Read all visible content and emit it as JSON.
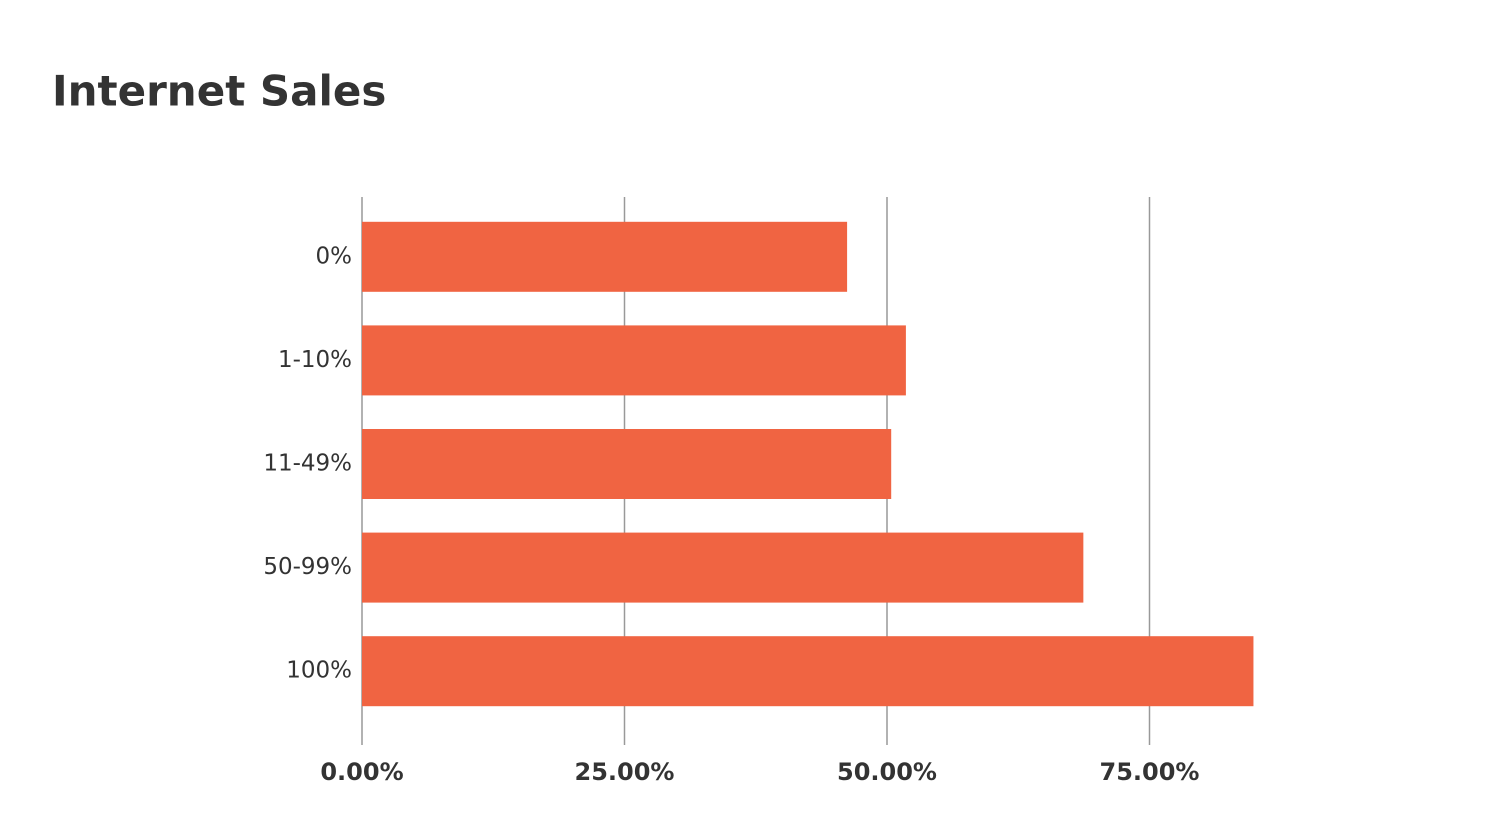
{
  "chart_data": {
    "type": "hbar",
    "title": "Internet Sales",
    "categories": [
      "0%",
      "1-10%",
      "11-49%",
      "50-99%",
      "100%"
    ],
    "values": [
      46.2,
      51.8,
      50.4,
      68.7,
      84.9
    ],
    "color": "#f06442",
    "xlim": [
      0,
      100
    ],
    "xticks": [
      {
        "value": 0,
        "label": "0.00%"
      },
      {
        "value": 25,
        "label": "25.00%"
      },
      {
        "value": 50,
        "label": "50.00%"
      },
      {
        "value": 75,
        "label": "75.00%"
      }
    ],
    "grid": true
  }
}
